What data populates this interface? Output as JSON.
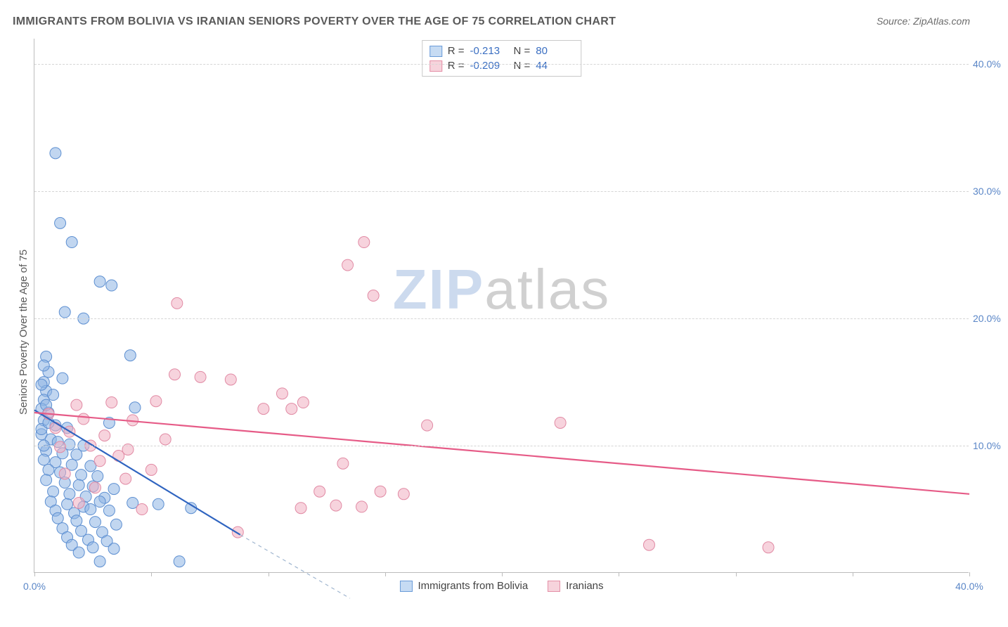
{
  "title": "IMMIGRANTS FROM BOLIVIA VS IRANIAN SENIORS POVERTY OVER THE AGE OF 75 CORRELATION CHART",
  "source_label": "Source: ",
  "source_name": "ZipAtlas.com",
  "ylabel": "Seniors Poverty Over the Age of 75",
  "watermark_a": "ZIP",
  "watermark_b": "atlas",
  "chart": {
    "type": "scatter",
    "xlim": [
      0,
      40
    ],
    "ylim": [
      0,
      42
    ],
    "y_ticks": [
      10,
      20,
      30,
      40
    ],
    "y_tick_labels": [
      "10.0%",
      "20.0%",
      "30.0%",
      "40.0%"
    ],
    "x_ticks": [
      0,
      5,
      10,
      15,
      20,
      25,
      30,
      35,
      40
    ],
    "x_tick_labels_shown": {
      "0": "0.0%",
      "40": "40.0%"
    },
    "marker_radius": 8,
    "marker_stroke_width": 1,
    "line_width": 2.2,
    "background_color": "#ffffff",
    "grid_color": "#d5d5d5",
    "axis_color": "#bcbcbc",
    "tick_label_color": "#5a86c7",
    "tick_label_fontsize": 14,
    "title_color": "#5a5a5a",
    "title_fontsize": 16,
    "ylabel_fontsize": 15,
    "series": [
      {
        "name": "Immigrants from Bolivia",
        "swatch_fill": "#c6dbf3",
        "swatch_border": "#6a9bd8",
        "marker_fill": "rgba(142,181,227,0.55)",
        "marker_stroke": "#5d8fd1",
        "line_color": "#2f64c0",
        "dash_color": "#9fb5cf",
        "R": "-0.213",
        "N": "80",
        "trend": {
          "x1": 0,
          "y1": 12.8,
          "x2": 8.8,
          "y2": 3.0
        },
        "trend_dash": {
          "x1": 8.8,
          "y1": 3.0,
          "x2": 13.5,
          "y2": -2.0
        },
        "points": [
          [
            0.9,
            33.0
          ],
          [
            1.1,
            27.5
          ],
          [
            1.6,
            26.0
          ],
          [
            2.8,
            22.9
          ],
          [
            3.3,
            22.6
          ],
          [
            1.3,
            20.5
          ],
          [
            2.1,
            20.0
          ],
          [
            4.1,
            17.1
          ],
          [
            0.5,
            17.0
          ],
          [
            0.6,
            15.8
          ],
          [
            0.4,
            15.0
          ],
          [
            1.2,
            15.3
          ],
          [
            0.5,
            14.3
          ],
          [
            0.4,
            13.6
          ],
          [
            0.8,
            14.0
          ],
          [
            0.3,
            12.9
          ],
          [
            0.6,
            12.6
          ],
          [
            4.3,
            13.0
          ],
          [
            3.2,
            11.8
          ],
          [
            0.4,
            12.0
          ],
          [
            0.9,
            11.6
          ],
          [
            1.4,
            11.4
          ],
          [
            0.3,
            10.9
          ],
          [
            0.7,
            10.5
          ],
          [
            1.0,
            10.3
          ],
          [
            1.5,
            10.1
          ],
          [
            2.1,
            10.0
          ],
          [
            0.5,
            9.6
          ],
          [
            1.2,
            9.4
          ],
          [
            1.8,
            9.3
          ],
          [
            0.4,
            8.9
          ],
          [
            0.9,
            8.7
          ],
          [
            1.6,
            8.5
          ],
          [
            2.4,
            8.4
          ],
          [
            0.6,
            8.1
          ],
          [
            1.1,
            7.9
          ],
          [
            2.0,
            7.7
          ],
          [
            2.7,
            7.6
          ],
          [
            0.5,
            7.3
          ],
          [
            1.3,
            7.1
          ],
          [
            1.9,
            6.9
          ],
          [
            2.5,
            6.8
          ],
          [
            3.4,
            6.6
          ],
          [
            0.8,
            6.4
          ],
          [
            1.5,
            6.2
          ],
          [
            2.2,
            6.0
          ],
          [
            3.0,
            5.9
          ],
          [
            0.7,
            5.6
          ],
          [
            1.4,
            5.4
          ],
          [
            2.1,
            5.2
          ],
          [
            2.8,
            5.6
          ],
          [
            4.2,
            5.5
          ],
          [
            0.9,
            4.9
          ],
          [
            1.7,
            4.7
          ],
          [
            2.4,
            5.0
          ],
          [
            3.2,
            4.9
          ],
          [
            5.3,
            5.4
          ],
          [
            1.0,
            4.3
          ],
          [
            1.8,
            4.1
          ],
          [
            2.6,
            4.0
          ],
          [
            3.5,
            3.8
          ],
          [
            1.2,
            3.5
          ],
          [
            2.0,
            3.3
          ],
          [
            2.9,
            3.2
          ],
          [
            6.7,
            5.1
          ],
          [
            1.4,
            2.8
          ],
          [
            2.3,
            2.6
          ],
          [
            3.1,
            2.5
          ],
          [
            1.6,
            2.2
          ],
          [
            2.5,
            2.0
          ],
          [
            3.4,
            1.9
          ],
          [
            1.9,
            1.6
          ],
          [
            2.8,
            0.9
          ],
          [
            6.2,
            0.9
          ],
          [
            0.3,
            11.3
          ],
          [
            0.4,
            10.0
          ],
          [
            0.5,
            13.2
          ],
          [
            0.6,
            11.8
          ],
          [
            0.3,
            14.8
          ],
          [
            0.4,
            16.3
          ]
        ]
      },
      {
        "name": "Iranians",
        "swatch_fill": "#f6d3dc",
        "swatch_border": "#e48fa7",
        "marker_fill": "rgba(240,174,193,0.55)",
        "marker_stroke": "#e18aa4",
        "line_color": "#e65b87",
        "R": "-0.209",
        "N": "44",
        "trend": {
          "x1": 0,
          "y1": 12.6,
          "x2": 40,
          "y2": 6.2
        },
        "points": [
          [
            14.1,
            26.0
          ],
          [
            13.4,
            24.2
          ],
          [
            14.5,
            21.8
          ],
          [
            6.1,
            21.2
          ],
          [
            6.0,
            15.6
          ],
          [
            7.1,
            15.4
          ],
          [
            8.4,
            15.2
          ],
          [
            10.6,
            14.1
          ],
          [
            11.5,
            13.4
          ],
          [
            5.2,
            13.5
          ],
          [
            3.3,
            13.4
          ],
          [
            1.8,
            13.2
          ],
          [
            9.8,
            12.9
          ],
          [
            11.0,
            12.9
          ],
          [
            2.1,
            12.1
          ],
          [
            4.2,
            12.0
          ],
          [
            16.8,
            11.6
          ],
          [
            22.5,
            11.8
          ],
          [
            0.9,
            11.4
          ],
          [
            1.5,
            11.1
          ],
          [
            3.0,
            10.8
          ],
          [
            5.6,
            10.5
          ],
          [
            2.4,
            10.0
          ],
          [
            4.0,
            9.7
          ],
          [
            3.6,
            9.2
          ],
          [
            2.8,
            8.8
          ],
          [
            13.2,
            8.6
          ],
          [
            5.0,
            8.1
          ],
          [
            1.3,
            7.8
          ],
          [
            3.9,
            7.4
          ],
          [
            12.2,
            6.4
          ],
          [
            14.8,
            6.4
          ],
          [
            15.8,
            6.2
          ],
          [
            12.9,
            5.3
          ],
          [
            14.0,
            5.2
          ],
          [
            11.4,
            5.1
          ],
          [
            1.9,
            5.5
          ],
          [
            4.6,
            5.0
          ],
          [
            8.7,
            3.2
          ],
          [
            26.3,
            2.2
          ],
          [
            31.4,
            2.0
          ],
          [
            2.6,
            6.7
          ],
          [
            1.1,
            9.9
          ],
          [
            0.6,
            12.5
          ]
        ]
      }
    ]
  },
  "legend_top": {
    "r_label": "R =",
    "n_label": "N ="
  },
  "legend_bottom": {
    "label_a": "Immigrants from Bolivia",
    "label_b": "Iranians"
  }
}
